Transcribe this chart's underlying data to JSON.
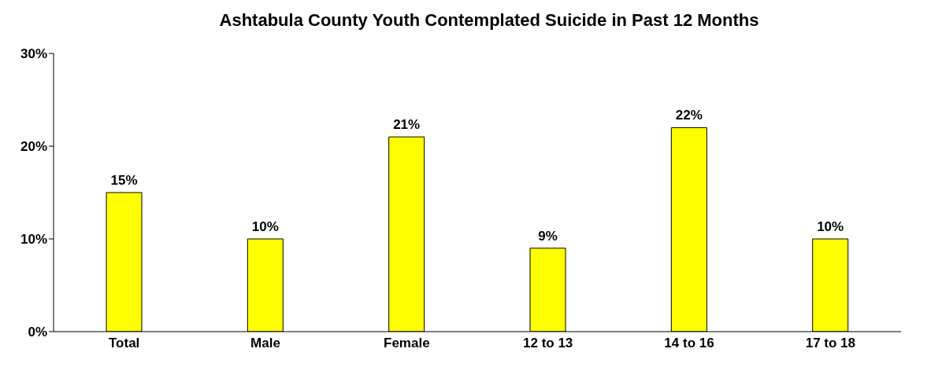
{
  "chart_data": {
    "type": "bar",
    "title": "Ashtabula County Youth Contemplated Suicide in Past 12 Months",
    "categories": [
      "Total",
      "Male",
      "Female",
      "12 to 13",
      "14 to 16",
      "17 to 18"
    ],
    "values": [
      15,
      10,
      21,
      9,
      22,
      10
    ],
    "value_labels": [
      "15%",
      "10%",
      "21%",
      "9%",
      "22%",
      "10%"
    ],
    "color": "#ffff00",
    "ylim": [
      0,
      30
    ],
    "yticks": [
      {
        "value": 0,
        "label": "0%"
      },
      {
        "value": 10,
        "label": "10%"
      },
      {
        "value": 20,
        "label": "20%"
      },
      {
        "value": 30,
        "label": "30%"
      }
    ],
    "grid": false,
    "legend": false
  }
}
